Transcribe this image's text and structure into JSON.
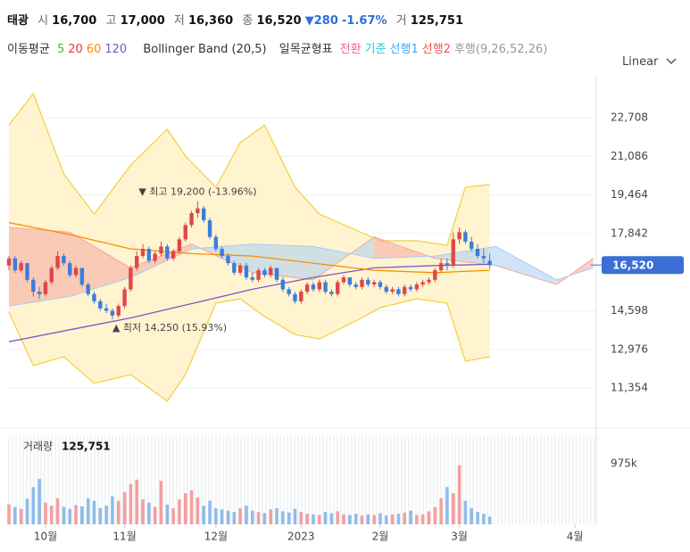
{
  "header": {
    "name": "태광",
    "open_label": "시",
    "open": "16,700",
    "high_label": "고",
    "high": "17,000",
    "low_label": "저",
    "low": "16,360",
    "close_label": "종",
    "close": "16,520",
    "change": "▼280",
    "change_pct": "-1.67%",
    "volume_label": "거",
    "volume": "125,751"
  },
  "legend": {
    "ma_label": "이동평균",
    "ma_periods": [
      {
        "text": "5",
        "color": "#4caf50"
      },
      {
        "text": "20",
        "color": "#e53935"
      },
      {
        "text": "60",
        "color": "#fb8c00"
      },
      {
        "text": "120",
        "color": "#7e57c2"
      }
    ],
    "bollinger": "Bollinger Band (20,5)",
    "ichimoku_label": "일목균형표",
    "ichimoku_items": [
      {
        "text": "전환",
        "color": "#f06292"
      },
      {
        "text": "기준",
        "color": "#26c6da"
      },
      {
        "text": "선행1",
        "color": "#42a5f5"
      },
      {
        "text": "선행2",
        "color": "#ef5350"
      },
      {
        "text": "후행(9,26,52,26)",
        "color": "#999999"
      }
    ],
    "scale": "Linear"
  },
  "chart_data": {
    "type": "candlestick",
    "xlim": [
      -0.3,
      96.5
    ],
    "xticks": [
      {
        "value": 6,
        "label": "10월"
      },
      {
        "value": 19,
        "label": "11월"
      },
      {
        "value": 34,
        "label": "12월"
      },
      {
        "value": 48,
        "label": "2023"
      },
      {
        "value": 61,
        "label": "2월"
      },
      {
        "value": 74,
        "label": "3월"
      },
      {
        "value": 93,
        "label": "4월"
      }
    ],
    "ylim": [
      9860,
      24470
    ],
    "yticks": [
      {
        "value": 22708,
        "label": "22,708"
      },
      {
        "value": 21086,
        "label": "21,086"
      },
      {
        "value": 19464,
        "label": "19,464"
      },
      {
        "value": 17842,
        "label": "17,842"
      },
      {
        "value": 14598,
        "label": "14,598"
      },
      {
        "value": 12976,
        "label": "12,976"
      },
      {
        "value": 11354,
        "label": "11,354"
      }
    ],
    "grid": true,
    "up_color": "#e0464c",
    "down_color": "#3b7ddd",
    "last_price": {
      "value": 16520,
      "label": "16,520",
      "color": "#3b6fd6"
    },
    "ohlc": [
      [
        16500,
        16900,
        16300,
        16800
      ],
      [
        16800,
        16900,
        16200,
        16300
      ],
      [
        16300,
        16700,
        16200,
        16600
      ],
      [
        16600,
        16600,
        15800,
        15900
      ],
      [
        15900,
        16000,
        15200,
        15400
      ],
      [
        15400,
        15600,
        15100,
        15300
      ],
      [
        15300,
        15900,
        15200,
        15800
      ],
      [
        15800,
        16500,
        15700,
        16400
      ],
      [
        16400,
        17100,
        16300,
        16900
      ],
      [
        16900,
        17000,
        16500,
        16600
      ],
      [
        16600,
        16700,
        16000,
        16100
      ],
      [
        16100,
        16500,
        16000,
        16400
      ],
      [
        16400,
        16400,
        15600,
        15700
      ],
      [
        15700,
        15800,
        15200,
        15300
      ],
      [
        15300,
        15400,
        14900,
        15000
      ],
      [
        15000,
        15100,
        14600,
        14700
      ],
      [
        14700,
        14900,
        14500,
        14600
      ],
      [
        14600,
        14700,
        14250,
        14400
      ],
      [
        14400,
        14900,
        14300,
        14800
      ],
      [
        14800,
        15600,
        14700,
        15500
      ],
      [
        15500,
        16500,
        15400,
        16400
      ],
      [
        16400,
        17100,
        16300,
        16900
      ],
      [
        16900,
        17400,
        16800,
        17200
      ],
      [
        17200,
        17300,
        16600,
        16700
      ],
      [
        16700,
        17100,
        16600,
        17000
      ],
      [
        17000,
        17500,
        16900,
        17300
      ],
      [
        17300,
        17400,
        16700,
        16800
      ],
      [
        16800,
        17200,
        16700,
        17100
      ],
      [
        17100,
        17700,
        17000,
        17600
      ],
      [
        17600,
        18300,
        17500,
        18200
      ],
      [
        18200,
        18800,
        18100,
        18700
      ],
      [
        18700,
        19200,
        18500,
        18900
      ],
      [
        18900,
        19000,
        18300,
        18400
      ],
      [
        18400,
        18500,
        17600,
        17700
      ],
      [
        17700,
        17800,
        17100,
        17200
      ],
      [
        17200,
        17300,
        16800,
        16900
      ],
      [
        16900,
        17000,
        16500,
        16600
      ],
      [
        16600,
        16700,
        16100,
        16200
      ],
      [
        16200,
        16600,
        16100,
        16500
      ],
      [
        16500,
        16600,
        15900,
        16000
      ],
      [
        16000,
        16200,
        15800,
        15900
      ],
      [
        15900,
        16400,
        15800,
        16300
      ],
      [
        16300,
        16400,
        16000,
        16100
      ],
      [
        16100,
        16500,
        16000,
        16400
      ],
      [
        16400,
        16400,
        15800,
        15900
      ],
      [
        15900,
        16000,
        15400,
        15500
      ],
      [
        15500,
        15600,
        15200,
        15300
      ],
      [
        15300,
        15400,
        14900,
        15000
      ],
      [
        15000,
        15500,
        14900,
        15400
      ],
      [
        15400,
        15800,
        15300,
        15700
      ],
      [
        15700,
        15800,
        15400,
        15500
      ],
      [
        15500,
        15900,
        15400,
        15800
      ],
      [
        15800,
        15900,
        15300,
        15400
      ],
      [
        15400,
        15500,
        15200,
        15300
      ],
      [
        15300,
        15900,
        15200,
        15800
      ],
      [
        15800,
        16100,
        15700,
        16000
      ],
      [
        16000,
        16000,
        15600,
        15700
      ],
      [
        15700,
        15800,
        15500,
        15600
      ],
      [
        15600,
        16000,
        15500,
        15900
      ],
      [
        15900,
        16000,
        15600,
        15700
      ],
      [
        15700,
        15900,
        15600,
        15800
      ],
      [
        15800,
        15900,
        15500,
        15600
      ],
      [
        15600,
        15700,
        15300,
        15400
      ],
      [
        15400,
        15600,
        15300,
        15500
      ],
      [
        15500,
        15600,
        15200,
        15300
      ],
      [
        15300,
        15700,
        15200,
        15600
      ],
      [
        15600,
        15700,
        15400,
        15500
      ],
      [
        15500,
        15800,
        15400,
        15700
      ],
      [
        15700,
        15900,
        15600,
        15800
      ],
      [
        15800,
        16000,
        15700,
        15900
      ],
      [
        15900,
        16400,
        15800,
        16300
      ],
      [
        16300,
        16800,
        16200,
        16600
      ],
      [
        16600,
        16800,
        16300,
        16500
      ],
      [
        16500,
        17900,
        16400,
        17600
      ],
      [
        17600,
        18100,
        17400,
        17900
      ],
      [
        17900,
        18000,
        17400,
        17500
      ],
      [
        17500,
        17700,
        17100,
        17200
      ],
      [
        17200,
        17400,
        16800,
        16900
      ],
      [
        16900,
        17200,
        16600,
        16800
      ],
      [
        16700,
        17000,
        16360,
        16520
      ]
    ],
    "bollinger": {
      "color": "#f2cf3a",
      "fill": "#fff4cf",
      "x": [
        0,
        4,
        9,
        14,
        20,
        26,
        29,
        34,
        38,
        42,
        47,
        51,
        57,
        61,
        67,
        72,
        75,
        79
      ],
      "upper": [
        22400,
        23720,
        20350,
        18660,
        20720,
        22220,
        21100,
        19790,
        21660,
        22400,
        19790,
        18660,
        17990,
        17540,
        17540,
        17350,
        19790,
        19900
      ],
      "lower": [
        14540,
        12300,
        12670,
        11550,
        11920,
        10800,
        11920,
        14920,
        15100,
        14360,
        13600,
        13420,
        14170,
        14730,
        15100,
        14920,
        12480,
        12670
      ]
    },
    "ichimoku": {
      "color1": "#f4a7a0",
      "color2": "#a9cdf2",
      "x": [
        0,
        10,
        20,
        30,
        40,
        50,
        60,
        70,
        80,
        90,
        96
      ],
      "lead1": [
        18100,
        17900,
        16400,
        17400,
        16200,
        15900,
        17700,
        16800,
        16500,
        15700,
        16800
      ],
      "lead2": [
        14800,
        15200,
        16000,
        17200,
        17400,
        17300,
        16800,
        16900,
        17300,
        15900,
        16400
      ]
    },
    "moving_averages": [
      {
        "color": "#7e57c2",
        "x": [
          0,
          10,
          20,
          30,
          40,
          50,
          60,
          70,
          79
        ],
        "values": [
          13300,
          13800,
          14300,
          14900,
          15500,
          16000,
          16400,
          16500,
          16550
        ]
      },
      {
        "color": "#fb8c00",
        "x": [
          0,
          10,
          20,
          30,
          40,
          50,
          60,
          70,
          79
        ],
        "values": [
          18300,
          17800,
          17200,
          17000,
          16900,
          16600,
          16300,
          16200,
          16300
        ]
      }
    ],
    "annotations": [
      {
        "text": "▼ 최고 19,200 (-13.96%)",
        "x": 31,
        "y": 19200
      },
      {
        "text": "▲ 최저 14,250 (15.93%)",
        "x": 17,
        "y": 14250
      }
    ],
    "volume": {
      "label": "거래량",
      "last": "125,751",
      "ylim": [
        0,
        1434000
      ],
      "yticks": [
        {
          "value": 975000,
          "label": "975k"
        }
      ],
      "up_color": "#f2a0a0",
      "down_color": "#8fbcea",
      "values": [
        320000,
        280000,
        250000,
        410000,
        600000,
        730000,
        350000,
        300000,
        420000,
        280000,
        250000,
        310000,
        290000,
        420000,
        380000,
        260000,
        300000,
        450000,
        380000,
        520000,
        650000,
        720000,
        400000,
        350000,
        280000,
        700000,
        320000,
        260000,
        400000,
        500000,
        550000,
        430000,
        300000,
        380000,
        260000,
        240000,
        220000,
        200000,
        260000,
        300000,
        220000,
        200000,
        180000,
        240000,
        260000,
        210000,
        190000,
        250000,
        200000,
        170000,
        160000,
        150000,
        200000,
        180000,
        210000,
        160000,
        150000,
        170000,
        140000,
        160000,
        150000,
        180000,
        140000,
        160000,
        170000,
        190000,
        220000,
        150000,
        160000,
        210000,
        280000,
        420000,
        600000,
        500000,
        950000,
        380000,
        260000,
        200000,
        170000,
        125751
      ]
    }
  }
}
